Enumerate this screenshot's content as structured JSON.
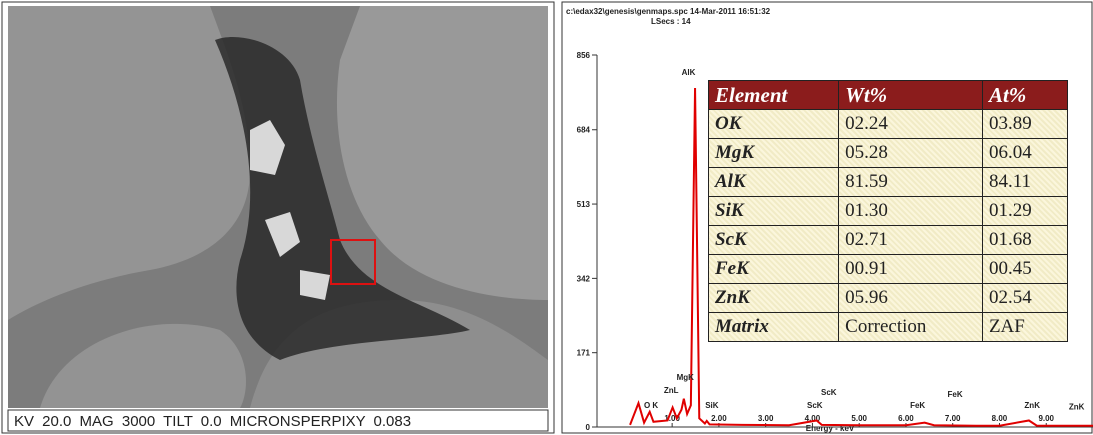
{
  "sem_image": {
    "caption": "KV 20.0 MAG 3000 TILT 0.0 MICRONSPERPIXY 0.083"
  },
  "chart_data": {
    "type": "line",
    "header": "c:\\edax32\\genesis\\genmaps.spc 14-Mar-2011 16:51:32",
    "subheader": "LSecs : 14",
    "x_label": "Energy - keV",
    "color": "#e00000",
    "x": [
      0.1,
      0.28,
      0.4,
      0.52,
      0.6,
      0.9,
      1.01,
      1.1,
      1.2,
      1.25,
      1.32,
      1.4,
      1.49,
      1.58,
      1.7,
      1.74,
      1.8,
      2.5,
      3.5,
      4.09,
      4.2,
      5.0,
      6.0,
      6.4,
      6.6,
      7.5,
      8.0,
      8.63,
      8.8,
      9.5,
      10.0
    ],
    "values": [
      5,
      55,
      10,
      35,
      12,
      15,
      45,
      20,
      40,
      65,
      30,
      50,
      780,
      20,
      8,
      14,
      6,
      5,
      4,
      15,
      5,
      4,
      4,
      10,
      4,
      3,
      3,
      15,
      3,
      3,
      3
    ],
    "annotations": [
      {
        "text": "O K",
        "x": 0.55,
        "y": 44
      },
      {
        "text": "ZnL",
        "x": 0.98,
        "y": 78
      },
      {
        "text": "MgK",
        "x": 1.28,
        "y": 108
      },
      {
        "text": "AlK",
        "x": 1.35,
        "y": 810
      },
      {
        "text": "SiK",
        "x": 1.85,
        "y": 44
      },
      {
        "text": "ScK",
        "x": 4.35,
        "y": 74
      },
      {
        "text": "ScK",
        "x": 4.05,
        "y": 44
      },
      {
        "text": "FeK",
        "x": 7.05,
        "y": 69
      },
      {
        "text": "FeK",
        "x": 6.25,
        "y": 44
      },
      {
        "text": "ZnK",
        "x": 8.7,
        "y": 44
      },
      {
        "text": "ZnK",
        "x": 9.65,
        "y": 40
      }
    ],
    "xlim": [
      -0.5,
      10
    ],
    "ylim": [
      0,
      856
    ],
    "xticks": [
      {
        "value": 1,
        "label": "1.00"
      },
      {
        "value": 2,
        "label": "2.00"
      },
      {
        "value": 3,
        "label": "3.00"
      },
      {
        "value": 4,
        "label": "4.00"
      },
      {
        "value": 5,
        "label": "5.00"
      },
      {
        "value": 6,
        "label": "6.00"
      },
      {
        "value": 7,
        "label": "7.00"
      },
      {
        "value": 8,
        "label": "8.00"
      },
      {
        "value": 9,
        "label": "9.00"
      }
    ],
    "yticks": [
      0,
      171,
      342,
      513,
      684,
      856
    ]
  },
  "table": {
    "header": [
      "Element",
      "Wt%",
      "At%"
    ],
    "rows": [
      [
        "OK",
        "02.24",
        "03.89"
      ],
      [
        "MgK",
        "05.28",
        "06.04"
      ],
      [
        "AlK",
        "81.59",
        "84.11"
      ],
      [
        "SiK",
        "01.30",
        "01.29"
      ],
      [
        "ScK",
        "02.71",
        "01.68"
      ],
      [
        "FeK",
        "00.91",
        "00.45"
      ],
      [
        "ZnK",
        "05.96",
        "02.54"
      ],
      [
        "Matrix",
        "Correction",
        "ZAF"
      ]
    ]
  }
}
